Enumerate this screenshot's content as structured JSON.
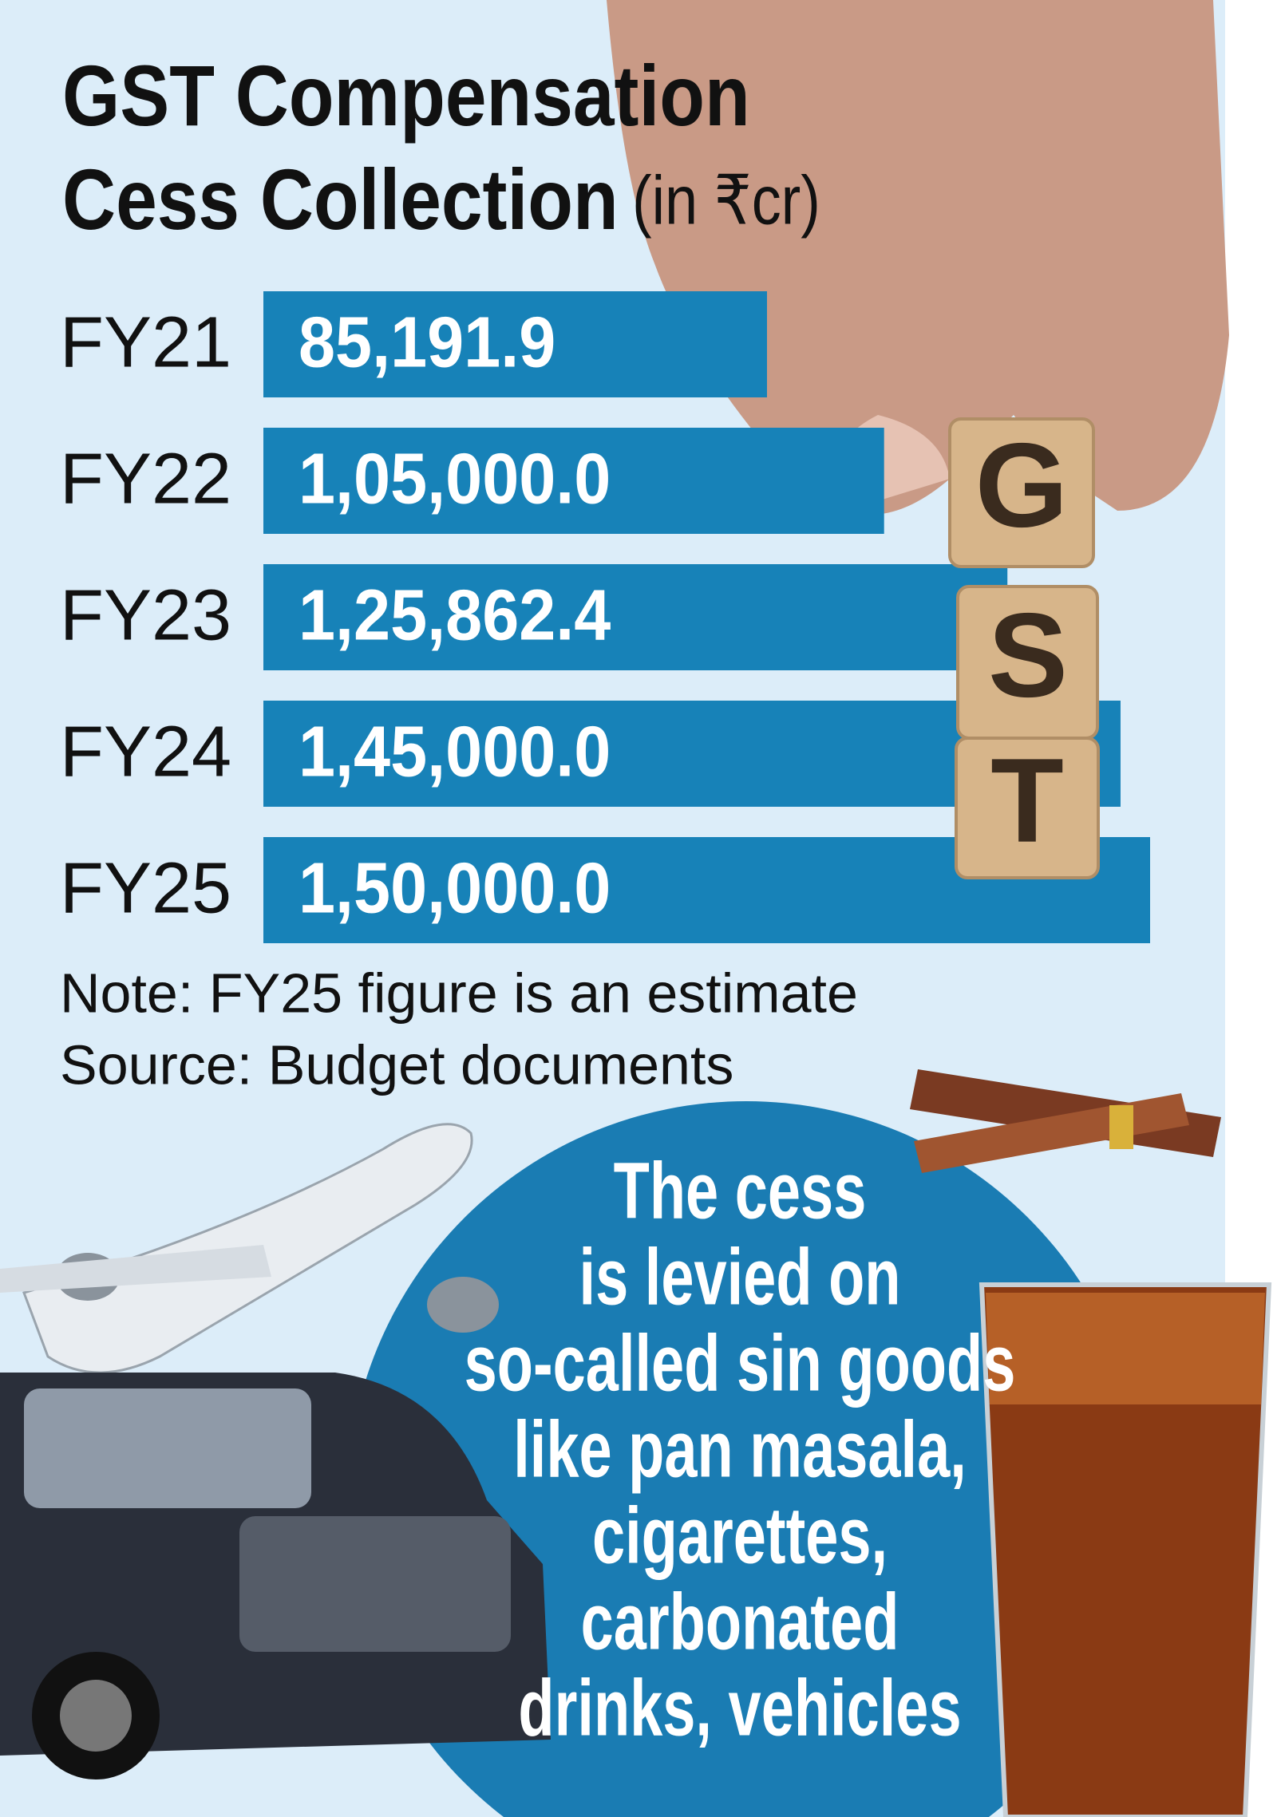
{
  "chart_data": {
    "type": "hbar",
    "title": "GST Compensation Cess Collection",
    "subtitle": "(in ₹cr)",
    "categories": [
      "FY21",
      "FY22",
      "FY23",
      "FY24",
      "FY25"
    ],
    "values": [
      85191.9,
      105000.0,
      125862.4,
      145000.0,
      150000.0
    ],
    "value_labels": [
      "85,191.9",
      "1,05,000.0",
      "1,25,862.4",
      "1,45,000.0",
      "1,50,000.0"
    ],
    "color": "#1782b8",
    "note": "Note: FY25 figure is an estimate",
    "source": "Source: Budget documents",
    "callout_lines": [
      "The cess",
      "is levied on",
      "so-called sin goods",
      "like pan masala,",
      "cigarettes,",
      "carbonated",
      "drinks, vehicles"
    ]
  }
}
